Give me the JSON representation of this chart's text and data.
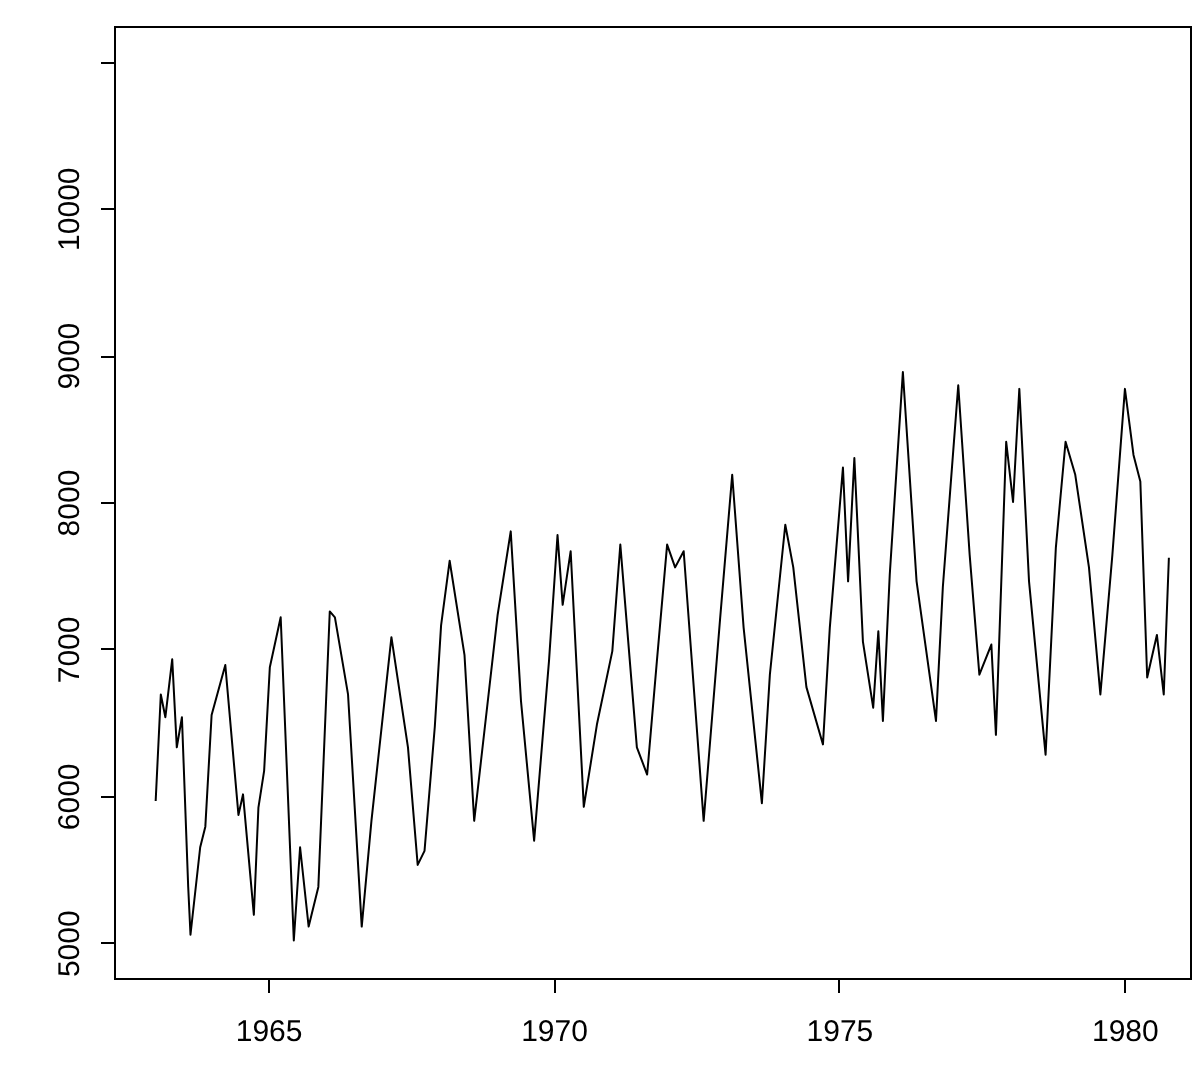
{
  "chart_data": {
    "type": "line",
    "x": [
      1963.03,
      1963.12,
      1963.2,
      1963.32,
      1963.4,
      1963.49,
      1963.6,
      1963.64,
      1963.81,
      1963.9,
      1964.01,
      1964.25,
      1964.48,
      1964.56,
      1964.75,
      1964.83,
      1964.93,
      1965.03,
      1965.22,
      1965.45,
      1965.56,
      1965.71,
      1965.88,
      1966.08,
      1966.17,
      1966.4,
      1966.64,
      1966.81,
      1967.16,
      1967.45,
      1967.62,
      1967.74,
      1967.92,
      1968.03,
      1968.18,
      1968.44,
      1968.61,
      1969.02,
      1969.25,
      1969.43,
      1969.66,
      1969.92,
      1970.07,
      1970.16,
      1970.3,
      1970.53,
      1970.76,
      1971.03,
      1971.17,
      1971.46,
      1971.64,
      1971.81,
      1971.99,
      1972.13,
      1972.28,
      1972.63,
      1972.92,
      1973.13,
      1973.33,
      1973.65,
      1973.79,
      1974.06,
      1974.2,
      1974.43,
      1974.72,
      1974.84,
      1975.07,
      1975.16,
      1975.27,
      1975.42,
      1975.6,
      1975.69,
      1975.77,
      1975.89,
      1976.12,
      1976.36,
      1976.7,
      1976.82,
      1977.09,
      1977.29,
      1977.46,
      1977.67,
      1977.75,
      1977.93,
      1978.05,
      1978.16,
      1978.33,
      1978.62,
      1978.8,
      1978.97,
      1979.14,
      1979.38,
      1979.58,
      1979.79,
      1980.01,
      1980.16,
      1980.28,
      1980.4,
      1980.57,
      1980.69,
      1980.78
    ],
    "series": [
      {
        "color": "#000000",
        "values": [
          5965,
          6690,
          6535,
          6930,
          6330,
          6535,
          5380,
          5055,
          5650,
          5790,
          6550,
          6890,
          5870,
          6010,
          5190,
          5920,
          6170,
          6875,
          7215,
          5015,
          5650,
          5110,
          5380,
          7255,
          7215,
          6690,
          5110,
          5830,
          7080,
          6330,
          5530,
          5625,
          6470,
          7160,
          7600,
          6960,
          5830,
          7230,
          7800,
          6645,
          5695,
          6915,
          7775,
          7300,
          7665,
          5925,
          6485,
          6985,
          7710,
          6330,
          6145,
          6915,
          7710,
          7555,
          7665,
          5830,
          7215,
          8185,
          7145,
          5950,
          6825,
          7845,
          7555,
          6740,
          6350,
          7145,
          8235,
          7460,
          8300,
          7050,
          6600,
          7120,
          6510,
          7505,
          8885,
          7460,
          6510,
          7420,
          8795,
          7640,
          6825,
          7030,
          6415,
          8410,
          8000,
          8770,
          7460,
          6280,
          7690,
          8410,
          8185,
          7555,
          6690,
          7640,
          8770,
          8320,
          8140,
          6805,
          7095,
          6690,
          7620
        ]
      }
    ],
    "xlim": [
      1962.3,
      1981.15
    ],
    "xticks": [
      1965,
      1970,
      1975,
      1980
    ],
    "ylim": [
      4760,
      11240
    ],
    "yticks": [
      5000,
      6000,
      7000,
      8000,
      9000,
      10000,
      {
        "value": 11000,
        "label": null
      }
    ],
    "grid": false,
    "line_style": "solid"
  }
}
